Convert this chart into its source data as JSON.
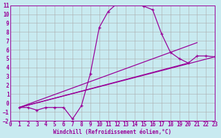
{
  "bg_color": "#c8eaf0",
  "grid_color": "#aaaaaa",
  "line_color": "#990099",
  "xlabel": "Windchill (Refroidissement éolien,°C)",
  "xlim": [
    0,
    23
  ],
  "ylim": [
    -2,
    11
  ],
  "xticks": [
    0,
    1,
    2,
    3,
    4,
    5,
    6,
    7,
    8,
    9,
    10,
    11,
    12,
    13,
    14,
    15,
    16,
    17,
    18,
    19,
    20,
    21,
    22,
    23
  ],
  "yticks": [
    -2,
    -1,
    0,
    1,
    2,
    3,
    4,
    5,
    6,
    7,
    8,
    9,
    10,
    11
  ],
  "line1_x": [
    1,
    2,
    3,
    4,
    5,
    6,
    7,
    8,
    9,
    10,
    11,
    12,
    13,
    14,
    15,
    16,
    17,
    18,
    19,
    20,
    21,
    22,
    23
  ],
  "line1_y": [
    -0.5,
    -0.5,
    -0.8,
    -0.5,
    -0.5,
    -0.5,
    -1.8,
    -0.3,
    3.3,
    8.5,
    10.3,
    11.2,
    11.3,
    11.2,
    10.9,
    10.5,
    7.8,
    5.7,
    5.0,
    4.5,
    5.3,
    5.3,
    5.2
  ],
  "line2_x": [
    1,
    23
  ],
  "line2_y": [
    -0.5,
    5.2
  ],
  "line3_x": [
    1,
    20
  ],
  "line3_y": [
    -0.5,
    4.5
  ],
  "line4_x": [
    1,
    21
  ],
  "line4_y": [
    -0.5,
    6.8
  ]
}
